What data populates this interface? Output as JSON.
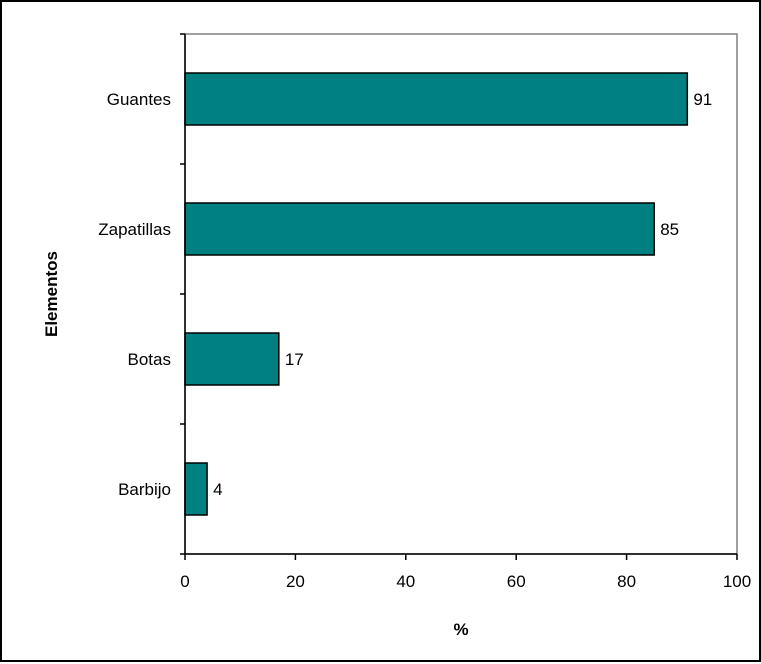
{
  "chart_data": {
    "type": "bar",
    "orientation": "horizontal",
    "title": "",
    "xlabel": "%",
    "ylabel": "Elementos",
    "categories": [
      "Guantes",
      "Zapatillas",
      "Botas",
      "Barbijo"
    ],
    "values": [
      91,
      85,
      17,
      4
    ],
    "xlim": [
      0,
      100
    ],
    "xticks": [
      "0",
      "20",
      "40",
      "60",
      "80",
      "100"
    ],
    "grid": false,
    "legend": "none",
    "colors": {
      "bar_fill": "#008080",
      "bar_stroke": "#000000",
      "plot_border": "#808080",
      "axis": "#000000"
    }
  }
}
